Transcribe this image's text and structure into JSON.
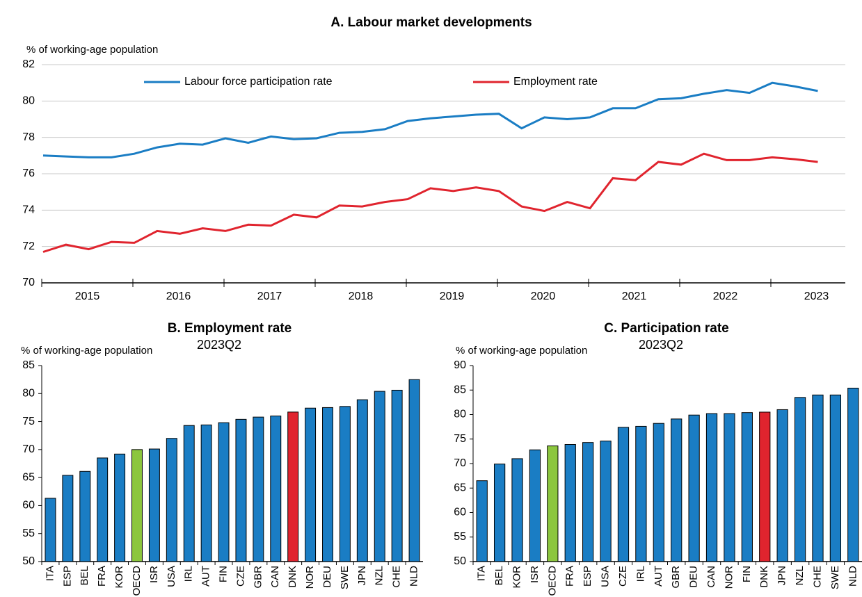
{
  "chart_data": [
    {
      "type": "line",
      "title": "A. Labour market developments",
      "y_label": "% of working-age population",
      "categories": [
        "2015",
        null,
        null,
        null,
        "2016",
        null,
        null,
        null,
        "2017",
        null,
        null,
        null,
        "2018",
        null,
        null,
        null,
        "2019",
        null,
        null,
        null,
        "2020",
        null,
        null,
        null,
        "2021",
        null,
        null,
        null,
        "2022",
        null,
        null,
        null,
        "2023",
        null,
        null
      ],
      "series": [
        {
          "name": "Labour force participation rate",
          "color": "#1a7dc4",
          "values": [
            77.0,
            76.95,
            76.9,
            76.9,
            77.1,
            77.45,
            77.65,
            77.6,
            77.95,
            77.7,
            78.05,
            77.9,
            77.95,
            78.25,
            78.3,
            78.45,
            78.9,
            79.05,
            79.15,
            79.25,
            79.3,
            78.5,
            79.1,
            79.0,
            79.1,
            79.6,
            79.6,
            80.1,
            80.15,
            80.4,
            80.6,
            80.45,
            81.0,
            80.8,
            80.55
          ]
        },
        {
          "name": "Employment rate",
          "color": "#e0242e",
          "values": [
            71.7,
            72.1,
            71.85,
            72.25,
            72.2,
            72.85,
            72.7,
            73.0,
            72.85,
            73.2,
            73.15,
            73.75,
            73.6,
            74.25,
            74.2,
            74.45,
            74.6,
            75.2,
            75.05,
            75.25,
            75.05,
            74.2,
            73.95,
            74.45,
            74.1,
            75.75,
            75.65,
            76.65,
            76.5,
            77.1,
            76.75,
            76.75,
            76.9,
            76.8,
            76.65
          ]
        }
      ],
      "ylim": [
        70,
        82
      ],
      "yticks": [
        70,
        72,
        74,
        76,
        78,
        80,
        82
      ],
      "grid": true,
      "legend": "top"
    },
    {
      "type": "bar",
      "title": "B. Employment rate",
      "subtitle": "2023Q2",
      "y_label": "% of working-age population",
      "categories": [
        "ITA",
        "ESP",
        "BEL",
        "FRA",
        "KOR",
        "OECD",
        "ISR",
        "USA",
        "IRL",
        "AUT",
        "FIN",
        "CZE",
        "GBR",
        "CAN",
        "DNK",
        "NOR",
        "DEU",
        "SWE",
        "JPN",
        "NZL",
        "CHE",
        "NLD"
      ],
      "values": [
        61.3,
        65.4,
        66.1,
        68.5,
        69.2,
        70.0,
        70.1,
        72.0,
        74.3,
        74.4,
        74.8,
        75.4,
        75.8,
        76.0,
        76.7,
        77.4,
        77.5,
        77.7,
        78.9,
        80.4,
        80.6,
        82.5
      ],
      "colors": [
        "#1a7dc4",
        "#1a7dc4",
        "#1a7dc4",
        "#1a7dc4",
        "#1a7dc4",
        "#8cc63e",
        "#1a7dc4",
        "#1a7dc4",
        "#1a7dc4",
        "#1a7dc4",
        "#1a7dc4",
        "#1a7dc4",
        "#1a7dc4",
        "#1a7dc4",
        "#e0242e",
        "#1a7dc4",
        "#1a7dc4",
        "#1a7dc4",
        "#1a7dc4",
        "#1a7dc4",
        "#1a7dc4",
        "#1a7dc4"
      ],
      "ylim": [
        50,
        85
      ],
      "yticks": [
        50,
        55,
        60,
        65,
        70,
        75,
        80,
        85
      ],
      "grid": false
    },
    {
      "type": "bar",
      "title": "C. Participation rate",
      "subtitle": "2023Q2",
      "y_label": "% of working-age population",
      "categories": [
        "ITA",
        "BEL",
        "KOR",
        "ISR",
        "OECD",
        "FRA",
        "ESP",
        "USA",
        "CZE",
        "IRL",
        "AUT",
        "GBR",
        "DEU",
        "CAN",
        "NOR",
        "FIN",
        "DNK",
        "JPN",
        "NZL",
        "CHE",
        "SWE",
        "NLD"
      ],
      "values": [
        66.5,
        69.9,
        71.0,
        72.8,
        73.6,
        73.9,
        74.3,
        74.6,
        77.4,
        77.6,
        78.2,
        79.1,
        79.9,
        80.2,
        80.2,
        80.4,
        80.5,
        81.0,
        83.5,
        84.0,
        84.0,
        85.4
      ],
      "colors": [
        "#1a7dc4",
        "#1a7dc4",
        "#1a7dc4",
        "#1a7dc4",
        "#8cc63e",
        "#1a7dc4",
        "#1a7dc4",
        "#1a7dc4",
        "#1a7dc4",
        "#1a7dc4",
        "#1a7dc4",
        "#1a7dc4",
        "#1a7dc4",
        "#1a7dc4",
        "#1a7dc4",
        "#1a7dc4",
        "#e0242e",
        "#1a7dc4",
        "#1a7dc4",
        "#1a7dc4",
        "#1a7dc4",
        "#1a7dc4"
      ],
      "ylim": [
        50,
        90
      ],
      "yticks": [
        50,
        55,
        60,
        65,
        70,
        75,
        80,
        85,
        90
      ],
      "grid": false
    }
  ]
}
